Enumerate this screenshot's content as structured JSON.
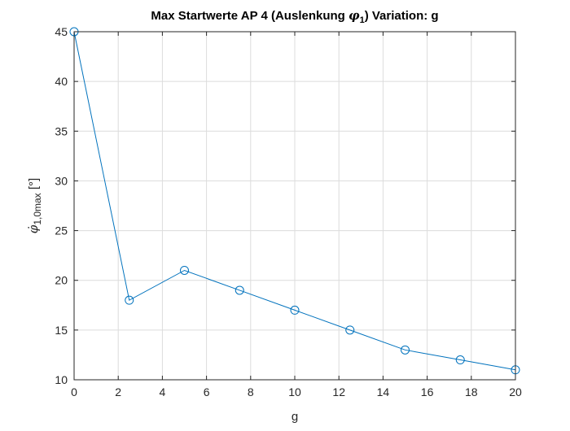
{
  "chart_data": {
    "type": "line",
    "title_main": "Max Startwerte AP 4 (Auslenkung ",
    "title_phi": "φ",
    "title_sub": "1",
    "title_close": ")",
    "title_tail": "  Variation: g",
    "xlabel": "g",
    "ylabel_phi": "φ̇",
    "ylabel_sub": "1,0max",
    "ylabel_unit": " [°]",
    "xlim": [
      0,
      20
    ],
    "ylim": [
      10,
      45
    ],
    "xticks": [
      0,
      2,
      4,
      6,
      8,
      10,
      12,
      14,
      16,
      18,
      20
    ],
    "yticks": [
      10,
      15,
      20,
      25,
      30,
      35,
      40,
      45
    ],
    "grid": true,
    "marker": "circle",
    "color": "#0072BD",
    "series": [
      {
        "x": [
          0,
          2.5,
          5,
          7.5,
          10,
          12.5,
          15,
          17.5,
          20
        ],
        "y": [
          45,
          18,
          21,
          19,
          17,
          15,
          13,
          12,
          11
        ]
      }
    ]
  }
}
